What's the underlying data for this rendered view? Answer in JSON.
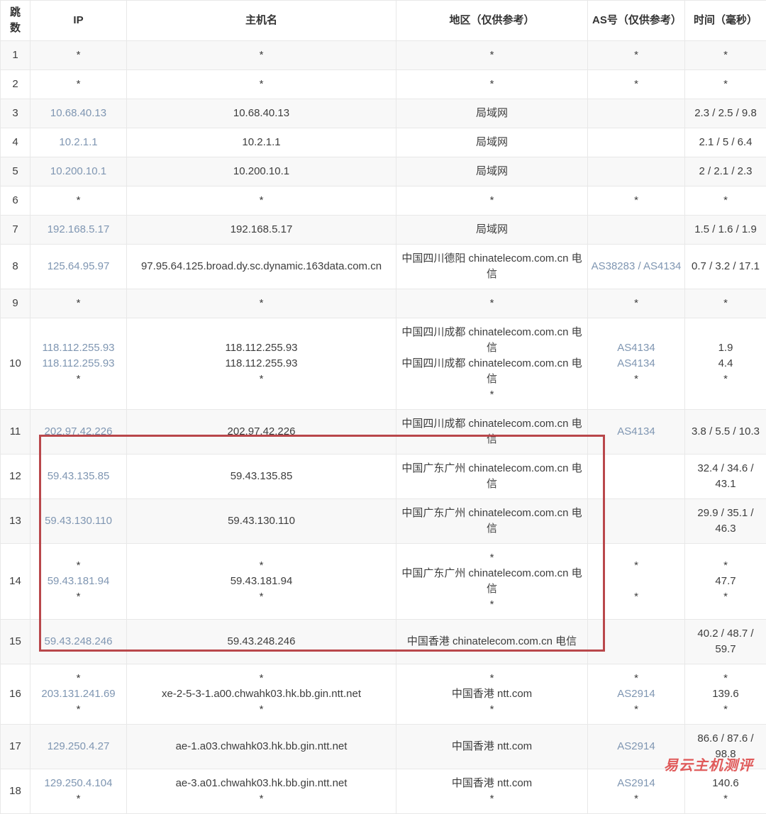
{
  "colors": {
    "link": "#7f96b2",
    "text": "#3d3d3d",
    "header_text": "#333333",
    "row_stripe": "#f8f8f8",
    "border": "#e8e8e8",
    "highlight_border": "#b9474b",
    "watermark": "#e05a5a"
  },
  "watermark": {
    "text": "易云主机测评"
  },
  "table": {
    "headers": [
      "跳数",
      "IP",
      "主机名",
      "地区（仅供参考）",
      "AS号（仅供参考）",
      "时间（毫秒）"
    ],
    "rows": [
      {
        "hop": "1",
        "ip": [
          "*"
        ],
        "host": [
          "*"
        ],
        "region": [
          "*"
        ],
        "asn": [
          "*"
        ],
        "time": [
          "*"
        ]
      },
      {
        "hop": "2",
        "ip": [
          "*"
        ],
        "host": [
          "*"
        ],
        "region": [
          "*"
        ],
        "asn": [
          "*"
        ],
        "time": [
          "*"
        ]
      },
      {
        "hop": "3",
        "ip": [
          "10.68.40.13"
        ],
        "host": [
          "10.68.40.13"
        ],
        "region": [
          "局域网"
        ],
        "asn": [],
        "time": [
          "2.3 / 2.5 / 9.8"
        ]
      },
      {
        "hop": "4",
        "ip": [
          "10.2.1.1"
        ],
        "host": [
          "10.2.1.1"
        ],
        "region": [
          "局域网"
        ],
        "asn": [],
        "time": [
          "2.1 / 5 / 6.4"
        ]
      },
      {
        "hop": "5",
        "ip": [
          "10.200.10.1"
        ],
        "host": [
          "10.200.10.1"
        ],
        "region": [
          "局域网"
        ],
        "asn": [],
        "time": [
          "2 / 2.1 / 2.3"
        ]
      },
      {
        "hop": "6",
        "ip": [
          "*"
        ],
        "host": [
          "*"
        ],
        "region": [
          "*"
        ],
        "asn": [
          "*"
        ],
        "time": [
          "*"
        ]
      },
      {
        "hop": "7",
        "ip": [
          "192.168.5.17"
        ],
        "host": [
          "192.168.5.17"
        ],
        "region": [
          "局域网"
        ],
        "asn": [],
        "time": [
          "1.5 / 1.6 / 1.9"
        ]
      },
      {
        "hop": "8",
        "ip": [
          "125.64.95.97"
        ],
        "host": [
          "97.95.64.125.broad.dy.sc.dynamic.163data.com.cn"
        ],
        "region": [
          "中国四川德阳 chinatelecom.com.cn 电信"
        ],
        "asn": [
          "AS38283 / AS4134"
        ],
        "time": [
          "0.7 / 3.2 / 17.1"
        ]
      },
      {
        "hop": "9",
        "ip": [
          "*"
        ],
        "host": [
          "*"
        ],
        "region": [
          "*"
        ],
        "asn": [
          "*"
        ],
        "time": [
          "*"
        ]
      },
      {
        "hop": "10",
        "ip": [
          "118.112.255.93",
          "118.112.255.93",
          "*"
        ],
        "host": [
          "118.112.255.93",
          "118.112.255.93",
          "*"
        ],
        "region": [
          "中国四川成都 chinatelecom.com.cn 电信",
          "中国四川成都 chinatelecom.com.cn 电信",
          "*"
        ],
        "asn": [
          "AS4134",
          "AS4134",
          "*"
        ],
        "time": [
          "1.9",
          "4.4",
          "*"
        ]
      },
      {
        "hop": "11",
        "ip": [
          "202.97.42.226"
        ],
        "host": [
          "202.97.42.226"
        ],
        "region": [
          "中国四川成都 chinatelecom.com.cn 电信"
        ],
        "asn": [
          "AS4134"
        ],
        "time": [
          "3.8 / 5.5 / 10.3"
        ]
      },
      {
        "hop": "12",
        "ip": [
          "59.43.135.85"
        ],
        "host": [
          "59.43.135.85"
        ],
        "region": [
          "中国广东广州 chinatelecom.com.cn 电信"
        ],
        "asn": [],
        "time": [
          "32.4 / 34.6 / 43.1"
        ]
      },
      {
        "hop": "13",
        "ip": [
          "59.43.130.110"
        ],
        "host": [
          "59.43.130.110"
        ],
        "region": [
          "中国广东广州 chinatelecom.com.cn 电信"
        ],
        "asn": [],
        "time": [
          "29.9 / 35.1 / 46.3"
        ]
      },
      {
        "hop": "14",
        "ip": [
          "*",
          "59.43.181.94",
          "*"
        ],
        "host": [
          "*",
          "59.43.181.94",
          "*"
        ],
        "region": [
          "*",
          "中国广东广州 chinatelecom.com.cn 电信",
          "*"
        ],
        "asn": [
          "*",
          "",
          "*"
        ],
        "time": [
          "*",
          "47.7",
          "*"
        ]
      },
      {
        "hop": "15",
        "ip": [
          "59.43.248.246"
        ],
        "host": [
          "59.43.248.246"
        ],
        "region": [
          "中国香港 chinatelecom.com.cn 电信"
        ],
        "asn": [],
        "time": [
          "40.2 / 48.7 / 59.7"
        ]
      },
      {
        "hop": "16",
        "ip": [
          "*",
          "203.131.241.69",
          "*"
        ],
        "host": [
          "*",
          "xe-2-5-3-1.a00.chwahk03.hk.bb.gin.ntt.net",
          "*"
        ],
        "region": [
          "*",
          "中国香港 ntt.com",
          "*"
        ],
        "asn": [
          "*",
          "AS2914",
          "*"
        ],
        "time": [
          "*",
          "139.6",
          "*"
        ]
      },
      {
        "hop": "17",
        "ip": [
          "129.250.4.27"
        ],
        "host": [
          "ae-1.a03.chwahk03.hk.bb.gin.ntt.net"
        ],
        "region": [
          "中国香港 ntt.com"
        ],
        "asn": [
          "AS2914"
        ],
        "time": [
          "86.6 / 87.6 / 98.8"
        ]
      },
      {
        "hop": "18",
        "ip": [
          "129.250.4.104",
          "*"
        ],
        "host": [
          "ae-3.a01.chwahk03.hk.bb.gin.ntt.net",
          "*"
        ],
        "region": [
          "中国香港 ntt.com",
          "*"
        ],
        "asn": [
          "AS2914",
          "*"
        ],
        "time": [
          "140.6",
          "*"
        ]
      }
    ]
  }
}
